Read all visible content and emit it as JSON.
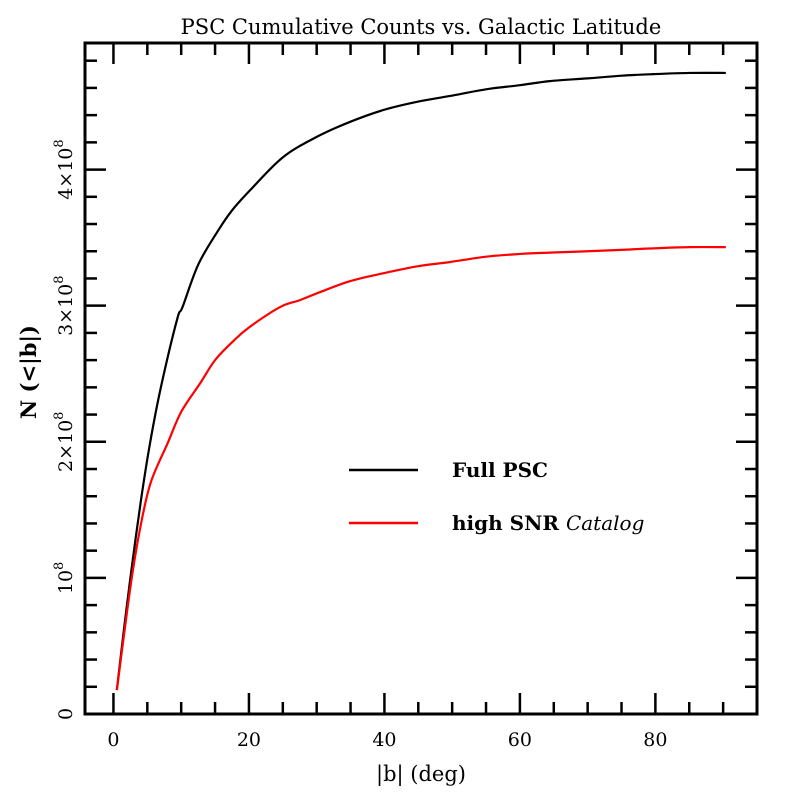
{
  "chart_data": {
    "type": "line",
    "title": "PSC Cumulative Counts vs. Galactic Latitude",
    "xlabel": "|b| (deg)",
    "ylabel": "N (<|b|)",
    "xlim": [
      -4.2,
      95
    ],
    "ylim": [
      0,
      493000000.0
    ],
    "xticks": {
      "major": [
        0,
        20,
        40,
        60,
        80
      ],
      "minor_step": 5,
      "labels": [
        "0",
        "20",
        "40",
        "60",
        "80"
      ]
    },
    "yticks": {
      "major": [
        0,
        100000000.0,
        200000000.0,
        300000000.0,
        400000000.0
      ],
      "minor_step": 20000000.0,
      "labels": [
        {
          "mantissa": "0",
          "exponent": ""
        },
        {
          "mantissa": "10",
          "exponent": "8"
        },
        {
          "mantissa": "2×10",
          "exponent": "8"
        },
        {
          "mantissa": "3×10",
          "exponent": "8"
        },
        {
          "mantissa": "4×10",
          "exponent": "8"
        }
      ]
    },
    "grid": false,
    "legend_position": "center-right",
    "series": [
      {
        "name": "Full PSC",
        "name_parts": [
          {
            "text": "Full PSC",
            "italic": false
          }
        ],
        "color": "#000000",
        "x": [
          0.5,
          1.5,
          2.5,
          4,
          5.4,
          7,
          9.4,
          10.2,
          12.5,
          15.3,
          17.5,
          20.2,
          25,
          30,
          34.9,
          40,
          45,
          49.6,
          55,
          60,
          64.4,
          70,
          75,
          79.1,
          85,
          90.4
        ],
        "y": [
          17600000.0,
          60000000.0,
          100000000.0,
          155000000.0,
          199000000.0,
          240000000.0,
          290000000.0,
          299000000.0,
          330000000.0,
          354000000.0,
          370000000.0,
          385000000.0,
          409000000.0,
          424000000.0,
          435000000.0,
          444000000.0,
          450000000.0,
          454000000.0,
          459000000.0,
          462000000.0,
          465000000.0,
          467000000.0,
          469000000.0,
          470000000.0,
          471000000.0,
          471000000.0
        ]
      },
      {
        "name": "high SNR Catalog",
        "name_parts": [
          {
            "text": "high SNR ",
            "italic": false
          },
          {
            "text": "Catalog",
            "italic": true
          }
        ],
        "color": "#ff0000",
        "x": [
          0.5,
          1.5,
          2.7,
          4,
          5.5,
          8.0,
          10,
          12.8,
          15,
          17.7,
          20,
          24.6,
          27.5,
          30,
          34.9,
          40,
          45,
          49.6,
          55,
          60,
          64.4,
          70,
          75,
          79.1,
          85,
          90.4
        ],
        "y": [
          17600000.0,
          56000000.0,
          100000000.0,
          138000000.0,
          170000000.0,
          199000000.0,
          222000000.0,
          243000000.0,
          260000000.0,
          274000000.0,
          284000000.0,
          299000000.0,
          304000000.0,
          309000000.0,
          318000000.0,
          324000000.0,
          329000000.0,
          332000000.0,
          336000000.0,
          338000000.0,
          339000000.0,
          340000000.0,
          341000000.0,
          342000000.0,
          343000000.0,
          343000000.0
        ]
      }
    ]
  }
}
